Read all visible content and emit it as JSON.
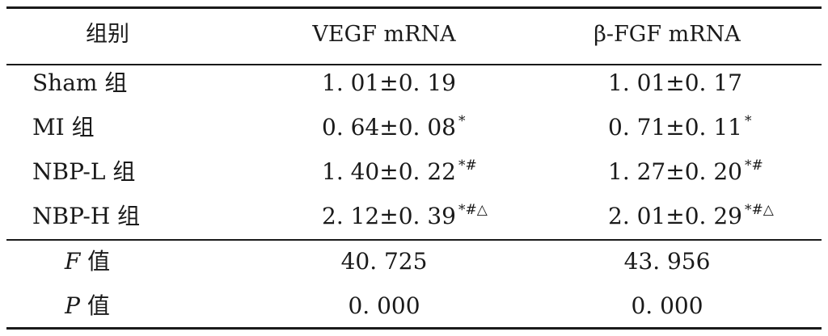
{
  "table": {
    "headers": [
      "组别",
      "VEGF mRNA",
      "β-FGF mRNA"
    ],
    "rows": [
      {
        "group": "Sham 组",
        "vegf": "1. 01±0. 19",
        "vegf_mark": "",
        "fgf": "1. 01±0. 17",
        "fgf_mark": ""
      },
      {
        "group": "MI 组",
        "vegf": "0. 64±0. 08",
        "vegf_mark": "*",
        "fgf": "0. 71±0. 11",
        "fgf_mark": "*"
      },
      {
        "group": "NBP-L 组",
        "vegf": "1. 40±0. 22",
        "vegf_mark": "*#",
        "fgf": "1. 27±0. 20",
        "fgf_mark": "*#"
      },
      {
        "group": "NBP-H 组",
        "vegf": "2. 12±0. 39",
        "vegf_mark": "*#△",
        "fgf": "2. 01±0. 29",
        "fgf_mark": "*#△"
      }
    ],
    "stats": [
      {
        "symbol": "F",
        "label": "值",
        "vegf": "40. 725",
        "fgf": "43. 956"
      },
      {
        "symbol": "P",
        "label": "值",
        "vegf": "0. 000",
        "fgf": "0. 000"
      }
    ]
  }
}
